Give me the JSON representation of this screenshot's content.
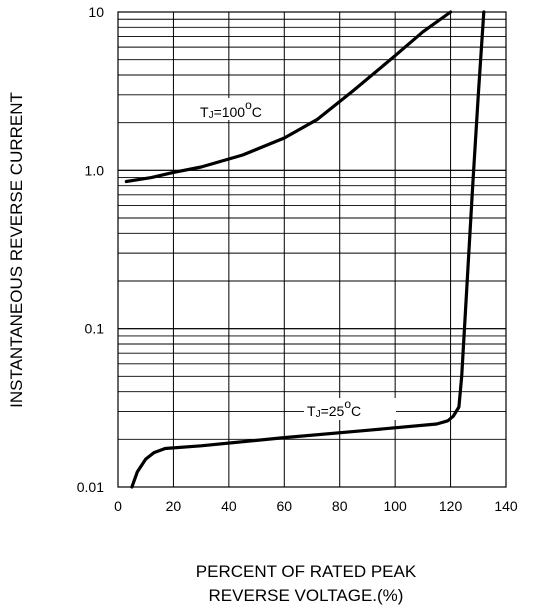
{
  "chart_data": {
    "type": "line",
    "xlabel_line1": "PERCENT OF RATED PEAK",
    "xlabel_line2": "REVERSE VOLTAGE.(%)",
    "ylabel": "INSTANTANEOUS REVERSE CURRENT",
    "xlim": [
      0,
      140
    ],
    "ylim": [
      0.01,
      10
    ],
    "yscale": "log",
    "grid": true,
    "x_ticks": [
      "0",
      "20",
      "40",
      "60",
      "80",
      "100",
      "120",
      "140"
    ],
    "y_ticks": [
      {
        "value": 0.01,
        "label": "0.01"
      },
      {
        "value": 0.1,
        "label": "0.1"
      },
      {
        "value": 1.0,
        "label": "1.0"
      },
      {
        "value": 10,
        "label": "10"
      }
    ],
    "series": [
      {
        "name": "TJ=100°C",
        "x": [
          3,
          12,
          20,
          30,
          45,
          60,
          72,
          85,
          100,
          110,
          120
        ],
        "y": [
          0.85,
          0.9,
          0.97,
          1.05,
          1.25,
          1.6,
          2.1,
          3.2,
          5.3,
          7.5,
          10
        ]
      },
      {
        "name": "TJ=25°C",
        "x": [
          5,
          7,
          10,
          13,
          17,
          30,
          60,
          90,
          115,
          119,
          121,
          123,
          124,
          126,
          128,
          130,
          132
        ],
        "y": [
          0.01,
          0.0125,
          0.015,
          0.0165,
          0.0175,
          0.0182,
          0.0205,
          0.0228,
          0.025,
          0.0262,
          0.028,
          0.032,
          0.05,
          0.2,
          0.8,
          3.0,
          10
        ]
      }
    ],
    "annotations": [
      {
        "sub": "J",
        "main": "T",
        "rest": "=100",
        "sup": "o",
        "unit": "C"
      },
      {
        "sub": "J",
        "main": "T",
        "rest": "=25",
        "sup": "o",
        "unit": "C"
      }
    ]
  }
}
